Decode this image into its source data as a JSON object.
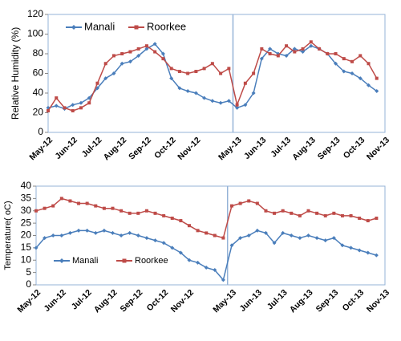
{
  "chart_data": [
    {
      "type": "line",
      "y_label": "Relative Humidity (%)",
      "categories": [
        "May-12",
        null,
        null,
        "Jun-12",
        null,
        null,
        "Jul-12",
        null,
        null,
        "Aug-12",
        null,
        null,
        "Sep-12",
        null,
        null,
        "Oct-12",
        null,
        null,
        "Nov-12",
        null,
        null,
        null,
        null,
        "May-13",
        null,
        null,
        "Jun-13",
        null,
        null,
        "Jul-13",
        null,
        null,
        "Aug-13",
        null,
        null,
        "Sep-13",
        null,
        null,
        "Oct-13",
        null,
        null,
        "Nov-13"
      ],
      "series": [
        {
          "name": "Manali",
          "color": "#4a7ebb",
          "values": [
            25,
            27,
            24,
            28,
            30,
            35,
            45,
            55,
            60,
            70,
            72,
            78,
            85,
            90,
            80,
            55,
            45,
            42,
            40,
            35,
            32,
            30,
            32,
            25,
            28,
            40,
            75,
            85,
            80,
            78,
            85,
            82,
            88,
            85,
            80,
            70,
            62,
            60,
            55,
            48,
            42,
            null
          ]
        },
        {
          "name": "Roorkee",
          "color": "#be4b48",
          "values": [
            22,
            35,
            25,
            22,
            25,
            30,
            50,
            70,
            78,
            80,
            82,
            85,
            88,
            82,
            75,
            65,
            62,
            60,
            62,
            65,
            70,
            60,
            65,
            28,
            50,
            60,
            85,
            80,
            78,
            88,
            82,
            85,
            92,
            85,
            80,
            80,
            75,
            72,
            78,
            70,
            55,
            null
          ]
        }
      ],
      "ylim": [
        0,
        120
      ],
      "yticks": [
        0,
        20,
        40,
        60,
        80,
        100,
        120
      ],
      "legend": "upper-left"
    },
    {
      "type": "line",
      "y_label": "Temperature( oC)",
      "categories": [
        "May-12",
        null,
        null,
        "Jun-12",
        null,
        null,
        "Jul-12",
        null,
        null,
        "Aug-12",
        null,
        null,
        "Sep-12",
        null,
        null,
        "Oct-12",
        null,
        null,
        "Nov-12",
        null,
        null,
        null,
        null,
        "May-13",
        null,
        null,
        "Jun-13",
        null,
        null,
        "Jul-13",
        null,
        null,
        "Aug-13",
        null,
        null,
        "Sep-13",
        null,
        null,
        "Oct-13",
        null,
        null,
        "Nov-13"
      ],
      "series": [
        {
          "name": "Manali",
          "color": "#4a7ebb",
          "values": [
            15,
            19,
            20,
            20,
            21,
            22,
            22,
            21,
            22,
            21,
            20,
            21,
            20,
            19,
            18,
            17,
            15,
            13,
            10,
            9,
            7,
            6,
            2,
            16,
            19,
            20,
            22,
            21,
            17,
            21,
            20,
            19,
            20,
            19,
            18,
            19,
            16,
            15,
            14,
            13,
            12,
            null
          ]
        },
        {
          "name": "Roorkee",
          "color": "#be4b48",
          "values": [
            30,
            31,
            32,
            35,
            34,
            33,
            33,
            32,
            31,
            31,
            30,
            29,
            29,
            30,
            29,
            28,
            27,
            26,
            24,
            22,
            21,
            20,
            19,
            32,
            33,
            34,
            33,
            30,
            29,
            30,
            29,
            28,
            30,
            29,
            28,
            29,
            28,
            28,
            27,
            26,
            27,
            null
          ]
        }
      ],
      "ylim": [
        0,
        40
      ],
      "yticks": [
        0,
        5,
        10,
        15,
        20,
        25,
        30,
        35,
        40
      ],
      "legend": "lower-left"
    }
  ]
}
